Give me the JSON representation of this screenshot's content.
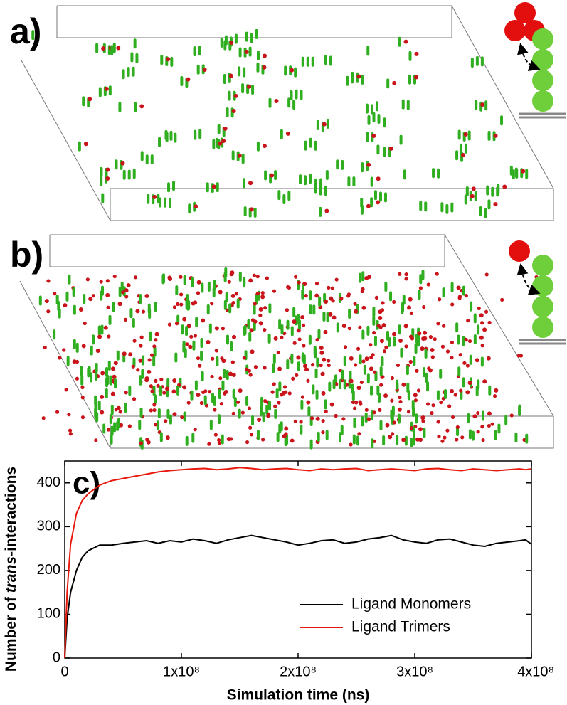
{
  "panels": {
    "a": {
      "label": "a)"
    },
    "b": {
      "label": "b)"
    }
  },
  "chart_data": {
    "type": "line",
    "panel_label": "c)",
    "x_label": "Simulation time (ns)",
    "y_label": {
      "prefix": "Number of ",
      "italic": "trans",
      "suffix": "-interactions"
    },
    "x": [
      0,
      2000000,
      5000000,
      10000000,
      15000000,
      20000000,
      30000000,
      40000000,
      50000000,
      60000000,
      70000000,
      80000000,
      90000000,
      100000000,
      110000000,
      120000000,
      130000000,
      140000000,
      150000000,
      160000000,
      170000000,
      180000000,
      190000000,
      200000000,
      210000000,
      220000000,
      230000000,
      240000000,
      250000000,
      260000000,
      270000000,
      280000000,
      290000000,
      300000000,
      310000000,
      320000000,
      330000000,
      340000000,
      350000000,
      360000000,
      370000000,
      380000000,
      390000000,
      395000000,
      400000000
    ],
    "series": [
      {
        "name": "Ligand Monomers",
        "color": "#000000",
        "values": [
          0,
          90,
          150,
          200,
          230,
          245,
          258,
          258,
          262,
          265,
          268,
          262,
          268,
          265,
          272,
          268,
          262,
          270,
          275,
          280,
          275,
          270,
          265,
          258,
          262,
          268,
          270,
          262,
          265,
          272,
          275,
          280,
          270,
          265,
          262,
          270,
          272,
          265,
          258,
          255,
          262,
          265,
          268,
          270,
          260
        ]
      },
      {
        "name": "Ligand Trimers",
        "color": "#e8180c",
        "values": [
          0,
          150,
          260,
          330,
          360,
          375,
          395,
          405,
          410,
          415,
          420,
          425,
          428,
          430,
          432,
          433,
          430,
          432,
          435,
          433,
          430,
          432,
          433,
          430,
          428,
          432,
          430,
          432,
          433,
          428,
          430,
          432,
          430,
          428,
          432,
          433,
          430,
          428,
          432,
          430,
          428,
          430,
          432,
          430,
          432
        ]
      }
    ],
    "xlim": [
      0,
      400000000
    ],
    "xticks": [
      0,
      {
        "value": 100000000,
        "label": "1x10⁸"
      },
      {
        "value": 200000000,
        "label": "2x10⁸"
      },
      {
        "value": 300000000,
        "label": "3x10⁸"
      },
      {
        "value": 400000000,
        "label": "4x10⁸"
      }
    ],
    "ylim": [
      0,
      450
    ],
    "yticks": [
      0,
      100,
      200,
      300,
      400
    ],
    "legend": "lower right",
    "grid": false
  }
}
